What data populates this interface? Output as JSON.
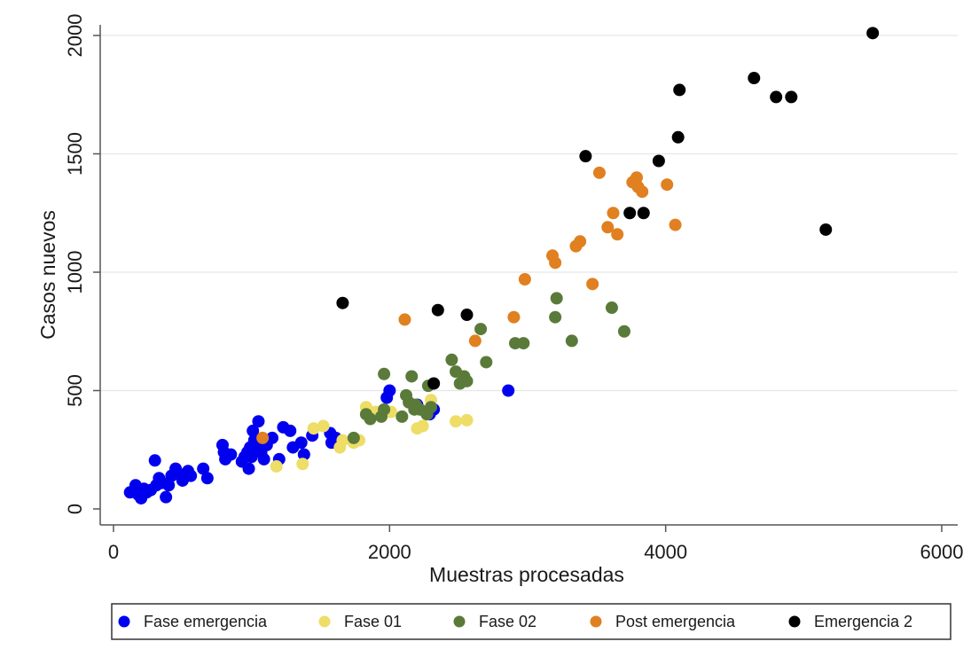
{
  "chart_data": {
    "type": "scatter",
    "xlabel": "Muestras procesadas",
    "ylabel": "Casos nuevos",
    "xlim": [
      0,
      6000
    ],
    "ylim": [
      0,
      2000
    ],
    "xticks": [
      0,
      2000,
      4000,
      6000
    ],
    "yticks": [
      0,
      500,
      1000,
      1500,
      2000
    ],
    "x_tick_labels": [
      "0",
      "2000",
      "4000",
      "6000"
    ],
    "y_tick_labels": [
      "0",
      "500",
      "1000",
      "1500",
      "2000"
    ],
    "grid": "horizontal",
    "legend_position": "bottom",
    "series": [
      {
        "name": "Fase emergencia",
        "color": "#0000ee",
        "points": [
          [
            120,
            70
          ],
          [
            160,
            100
          ],
          [
            180,
            60
          ],
          [
            200,
            45
          ],
          [
            220,
            85
          ],
          [
            240,
            70
          ],
          [
            270,
            80
          ],
          [
            300,
            205
          ],
          [
            310,
            100
          ],
          [
            330,
            130
          ],
          [
            350,
            110
          ],
          [
            380,
            50
          ],
          [
            400,
            100
          ],
          [
            420,
            140
          ],
          [
            450,
            170
          ],
          [
            470,
            150
          ],
          [
            500,
            120
          ],
          [
            520,
            145
          ],
          [
            540,
            160
          ],
          [
            560,
            140
          ],
          [
            650,
            170
          ],
          [
            680,
            130
          ],
          [
            790,
            270
          ],
          [
            800,
            240
          ],
          [
            810,
            210
          ],
          [
            850,
            230
          ],
          [
            930,
            200
          ],
          [
            950,
            220
          ],
          [
            970,
            240
          ],
          [
            980,
            170
          ],
          [
            990,
            260
          ],
          [
            1000,
            220
          ],
          [
            1010,
            330
          ],
          [
            1020,
            290
          ],
          [
            1030,
            250
          ],
          [
            1050,
            370
          ],
          [
            1060,
            270
          ],
          [
            1070,
            240
          ],
          [
            1090,
            210
          ],
          [
            1110,
            270
          ],
          [
            1150,
            300
          ],
          [
            1200,
            210
          ],
          [
            1230,
            345
          ],
          [
            1280,
            330
          ],
          [
            1300,
            260
          ],
          [
            1360,
            280
          ],
          [
            1380,
            230
          ],
          [
            1440,
            310
          ],
          [
            1570,
            320
          ],
          [
            1580,
            280
          ],
          [
            1610,
            300
          ],
          [
            1980,
            470
          ],
          [
            2000,
            500
          ],
          [
            2200,
            440
          ],
          [
            2290,
            400
          ],
          [
            2320,
            420
          ],
          [
            2860,
            500
          ]
        ]
      },
      {
        "name": "Fase 01",
        "color": "#eedd66",
        "points": [
          [
            1180,
            180
          ],
          [
            1370,
            190
          ],
          [
            1450,
            340
          ],
          [
            1520,
            350
          ],
          [
            1640,
            260
          ],
          [
            1660,
            290
          ],
          [
            1740,
            280
          ],
          [
            1780,
            290
          ],
          [
            1830,
            430
          ],
          [
            1900,
            410
          ],
          [
            1950,
            400
          ],
          [
            2010,
            410
          ],
          [
            2200,
            340
          ],
          [
            2240,
            350
          ],
          [
            2270,
            400
          ],
          [
            2300,
            460
          ],
          [
            2480,
            370
          ],
          [
            2560,
            375
          ]
        ]
      },
      {
        "name": "Fase 02",
        "color": "#5a7a3a",
        "points": [
          [
            1740,
            300
          ],
          [
            1830,
            400
          ],
          [
            1860,
            380
          ],
          [
            1940,
            390
          ],
          [
            1960,
            420
          ],
          [
            1960,
            570
          ],
          [
            2090,
            390
          ],
          [
            2120,
            480
          ],
          [
            2140,
            450
          ],
          [
            2160,
            560
          ],
          [
            2180,
            420
          ],
          [
            2190,
            440
          ],
          [
            2220,
            420
          ],
          [
            2270,
            400
          ],
          [
            2280,
            520
          ],
          [
            2300,
            430
          ],
          [
            2450,
            630
          ],
          [
            2480,
            580
          ],
          [
            2510,
            530
          ],
          [
            2540,
            560
          ],
          [
            2560,
            540
          ],
          [
            2660,
            760
          ],
          [
            2700,
            620
          ],
          [
            2910,
            700
          ],
          [
            2970,
            700
          ],
          [
            3200,
            810
          ],
          [
            3210,
            890
          ],
          [
            3320,
            710
          ],
          [
            3610,
            850
          ],
          [
            3700,
            750
          ]
        ]
      },
      {
        "name": "Post emergencia",
        "color": "#e08020",
        "points": [
          [
            1080,
            300
          ],
          [
            2110,
            800
          ],
          [
            2620,
            710
          ],
          [
            2900,
            810
          ],
          [
            2980,
            970
          ],
          [
            3180,
            1070
          ],
          [
            3200,
            1040
          ],
          [
            3350,
            1110
          ],
          [
            3380,
            1130
          ],
          [
            3470,
            950
          ],
          [
            3520,
            1420
          ],
          [
            3580,
            1190
          ],
          [
            3620,
            1250
          ],
          [
            3650,
            1160
          ],
          [
            3760,
            1380
          ],
          [
            3790,
            1400
          ],
          [
            3800,
            1360
          ],
          [
            3830,
            1340
          ],
          [
            4010,
            1370
          ],
          [
            4070,
            1200
          ]
        ]
      },
      {
        "name": "Emergencia 2",
        "color": "#000000",
        "points": [
          [
            1660,
            870
          ],
          [
            2320,
            530
          ],
          [
            2350,
            840
          ],
          [
            2560,
            820
          ],
          [
            3420,
            1490
          ],
          [
            3740,
            1250
          ],
          [
            3840,
            1250
          ],
          [
            3950,
            1470
          ],
          [
            4090,
            1570
          ],
          [
            4100,
            1770
          ],
          [
            4640,
            1820
          ],
          [
            4800,
            1740
          ],
          [
            4910,
            1740
          ],
          [
            5160,
            1180
          ],
          [
            5500,
            2010
          ]
        ]
      }
    ]
  }
}
